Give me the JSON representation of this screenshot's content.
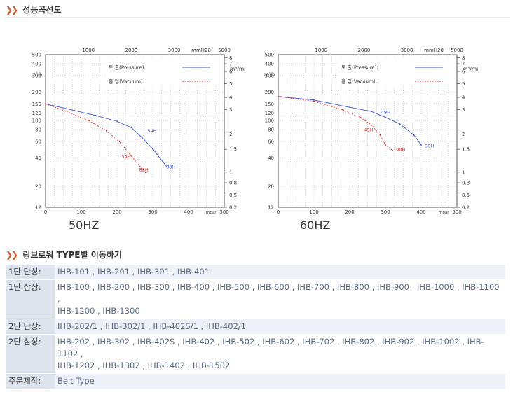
{
  "section1_title": "성능곡선도",
  "section2_title": "링브로워 TYPE별 이동하기",
  "chart_data": [
    {
      "type": "line",
      "frequency_label": "50HZ",
      "xlabel_bottom": "mbar",
      "xlabel_top": "mmH20",
      "ylabel_left": "m³/h",
      "ylabel_right": "m³/min",
      "xlim": [
        0,
        500
      ],
      "ylim": [
        12,
        500
      ],
      "log_y": true,
      "x_ticks_bottom": [
        "0",
        "100",
        "200",
        "300",
        "400",
        "500"
      ],
      "x_ticks_top": [
        "1000",
        "2000",
        "3000",
        "mmH20",
        "5000"
      ],
      "y_ticks_left": [
        "500",
        "400",
        "300",
        "200",
        "150",
        "120",
        "100",
        "80",
        "60",
        "40",
        "20",
        "12"
      ],
      "y_ticks_right": [
        "8",
        "7",
        "6",
        "5",
        "4",
        "3",
        "2",
        "1.5",
        "1",
        "0.8",
        "0.5",
        "0.2"
      ],
      "legend": [
        {
          "label": "토 출(Pressure):",
          "style": "solid",
          "color": "#3a52d8"
        },
        {
          "label": "흡 입(Vacuum):",
          "style": "dashed",
          "color": "#e03030"
        }
      ],
      "series": [
        {
          "name": "토 출(Pressure):",
          "color": "#3a52d8",
          "x": [
            0,
            80,
            140,
            200,
            240,
            270,
            300,
            340
          ],
          "y": [
            150,
            128,
            113,
            98,
            84,
            66,
            50,
            32
          ]
        },
        {
          "name": "흡 입(Vacuum):",
          "color": "#e03030",
          "x": [
            0,
            60,
            120,
            170,
            210,
            240,
            260,
            280
          ],
          "y": [
            150,
            124,
            100,
            78,
            58,
            42,
            34,
            28
          ]
        }
      ],
      "annotations": [
        {
          "text": "54H",
          "x": 285,
          "y": 75,
          "color": "#3a52d8"
        },
        {
          "text": "88H",
          "x": 338,
          "y": 31,
          "color": "#3a52d8"
        },
        {
          "text": "54H",
          "x": 213,
          "y": 40,
          "color": "#e03030"
        },
        {
          "text": "88H",
          "x": 262,
          "y": 29,
          "color": "#e03030"
        }
      ]
    },
    {
      "type": "line",
      "frequency_label": "60HZ",
      "xlabel_bottom": "mbar",
      "xlabel_top": "mmH20",
      "ylabel_left": "m³/h",
      "ylabel_right": "m³/min",
      "xlim": [
        0,
        500
      ],
      "ylim": [
        12,
        500
      ],
      "log_y": true,
      "x_ticks_bottom": [
        "0",
        "100",
        "200",
        "300",
        "400",
        "500"
      ],
      "x_ticks_top": [
        "1000",
        "2000",
        "3000",
        "mmH20",
        "5000"
      ],
      "y_ticks_left": [
        "500",
        "400",
        "300",
        "200",
        "150",
        "120",
        "100",
        "80",
        "60",
        "40",
        "20",
        "12"
      ],
      "y_ticks_right": [
        "8",
        "7",
        "6",
        "5",
        "4",
        "3",
        "2",
        "1.5",
        "1",
        "0.8",
        "0.5",
        "0.2"
      ],
      "legend": [
        {
          "label": "토 출(Pressure):",
          "style": "solid",
          "color": "#3a52d8"
        },
        {
          "label": "흡 입(Vacuum):",
          "style": "dashed",
          "color": "#e03030"
        }
      ],
      "series": [
        {
          "name": "토 출(Pressure):",
          "color": "#3a52d8",
          "x": [
            0,
            100,
            200,
            260,
            300,
            340,
            380,
            400
          ],
          "y": [
            180,
            165,
            138,
            125,
            108,
            92,
            70,
            55
          ]
        },
        {
          "name": "흡 입(Vacuum):",
          "color": "#e03030",
          "x": [
            0,
            100,
            180,
            230,
            260,
            285,
            300,
            320
          ],
          "y": [
            180,
            160,
            130,
            108,
            90,
            70,
            55,
            48
          ]
        }
      ],
      "annotations": [
        {
          "text": "49H",
          "x": 288,
          "y": 118,
          "color": "#3a52d8"
        },
        {
          "text": "90H",
          "x": 410,
          "y": 52,
          "color": "#3a52d8"
        },
        {
          "text": "49H",
          "x": 240,
          "y": 77,
          "color": "#e03030"
        },
        {
          "text": "90H",
          "x": 330,
          "y": 47,
          "color": "#e03030"
        }
      ]
    }
  ],
  "types_table": {
    "rows": [
      {
        "label": "1단 단상:",
        "lines": [
          "IHB-101 , IHB-201 , IHB-301 , IHB-401"
        ],
        "style": "alt"
      },
      {
        "label": "1단 삼상:",
        "lines": [
          "IHB-100 , IHB-200 , IHB-300 , IHB-400 , IHB-500 , IHB-600 , IHB-700 , IHB-800 , IHB-900 , IHB-1000 , IHB-1100 ,",
          "IHB-1200 , IHB-1300"
        ],
        "style": "plain"
      },
      {
        "label": "2단 단상:",
        "lines": [
          "IHB-202/1 , IHB-302/1 , IHB-402S/1 , IHB-402/1"
        ],
        "style": "alt"
      },
      {
        "label": "2단 삼상:",
        "lines": [
          "IHB-202 , IHB-302 , IHB-402S , IHB-402 , IHB-502 , IHB-602 , IHB-702 , IHB-802 , IHB-902 , IHB-1002 , IHB-1102 ,",
          "IHB-1202 , IHB-1302 , IHB-1402 , IHB-1502"
        ],
        "style": "plain"
      },
      {
        "label": "주문제작:",
        "lines": [
          "Belt Type"
        ],
        "style": "alt"
      }
    ]
  },
  "colors": {
    "accent_arrows": "#e8541e",
    "label_cell_bg": "#dde4ee",
    "value_text": "#5a6b87",
    "grid": "#b8b8b8",
    "pressure_line": "#3a52d8",
    "vacuum_line": "#e03030"
  }
}
